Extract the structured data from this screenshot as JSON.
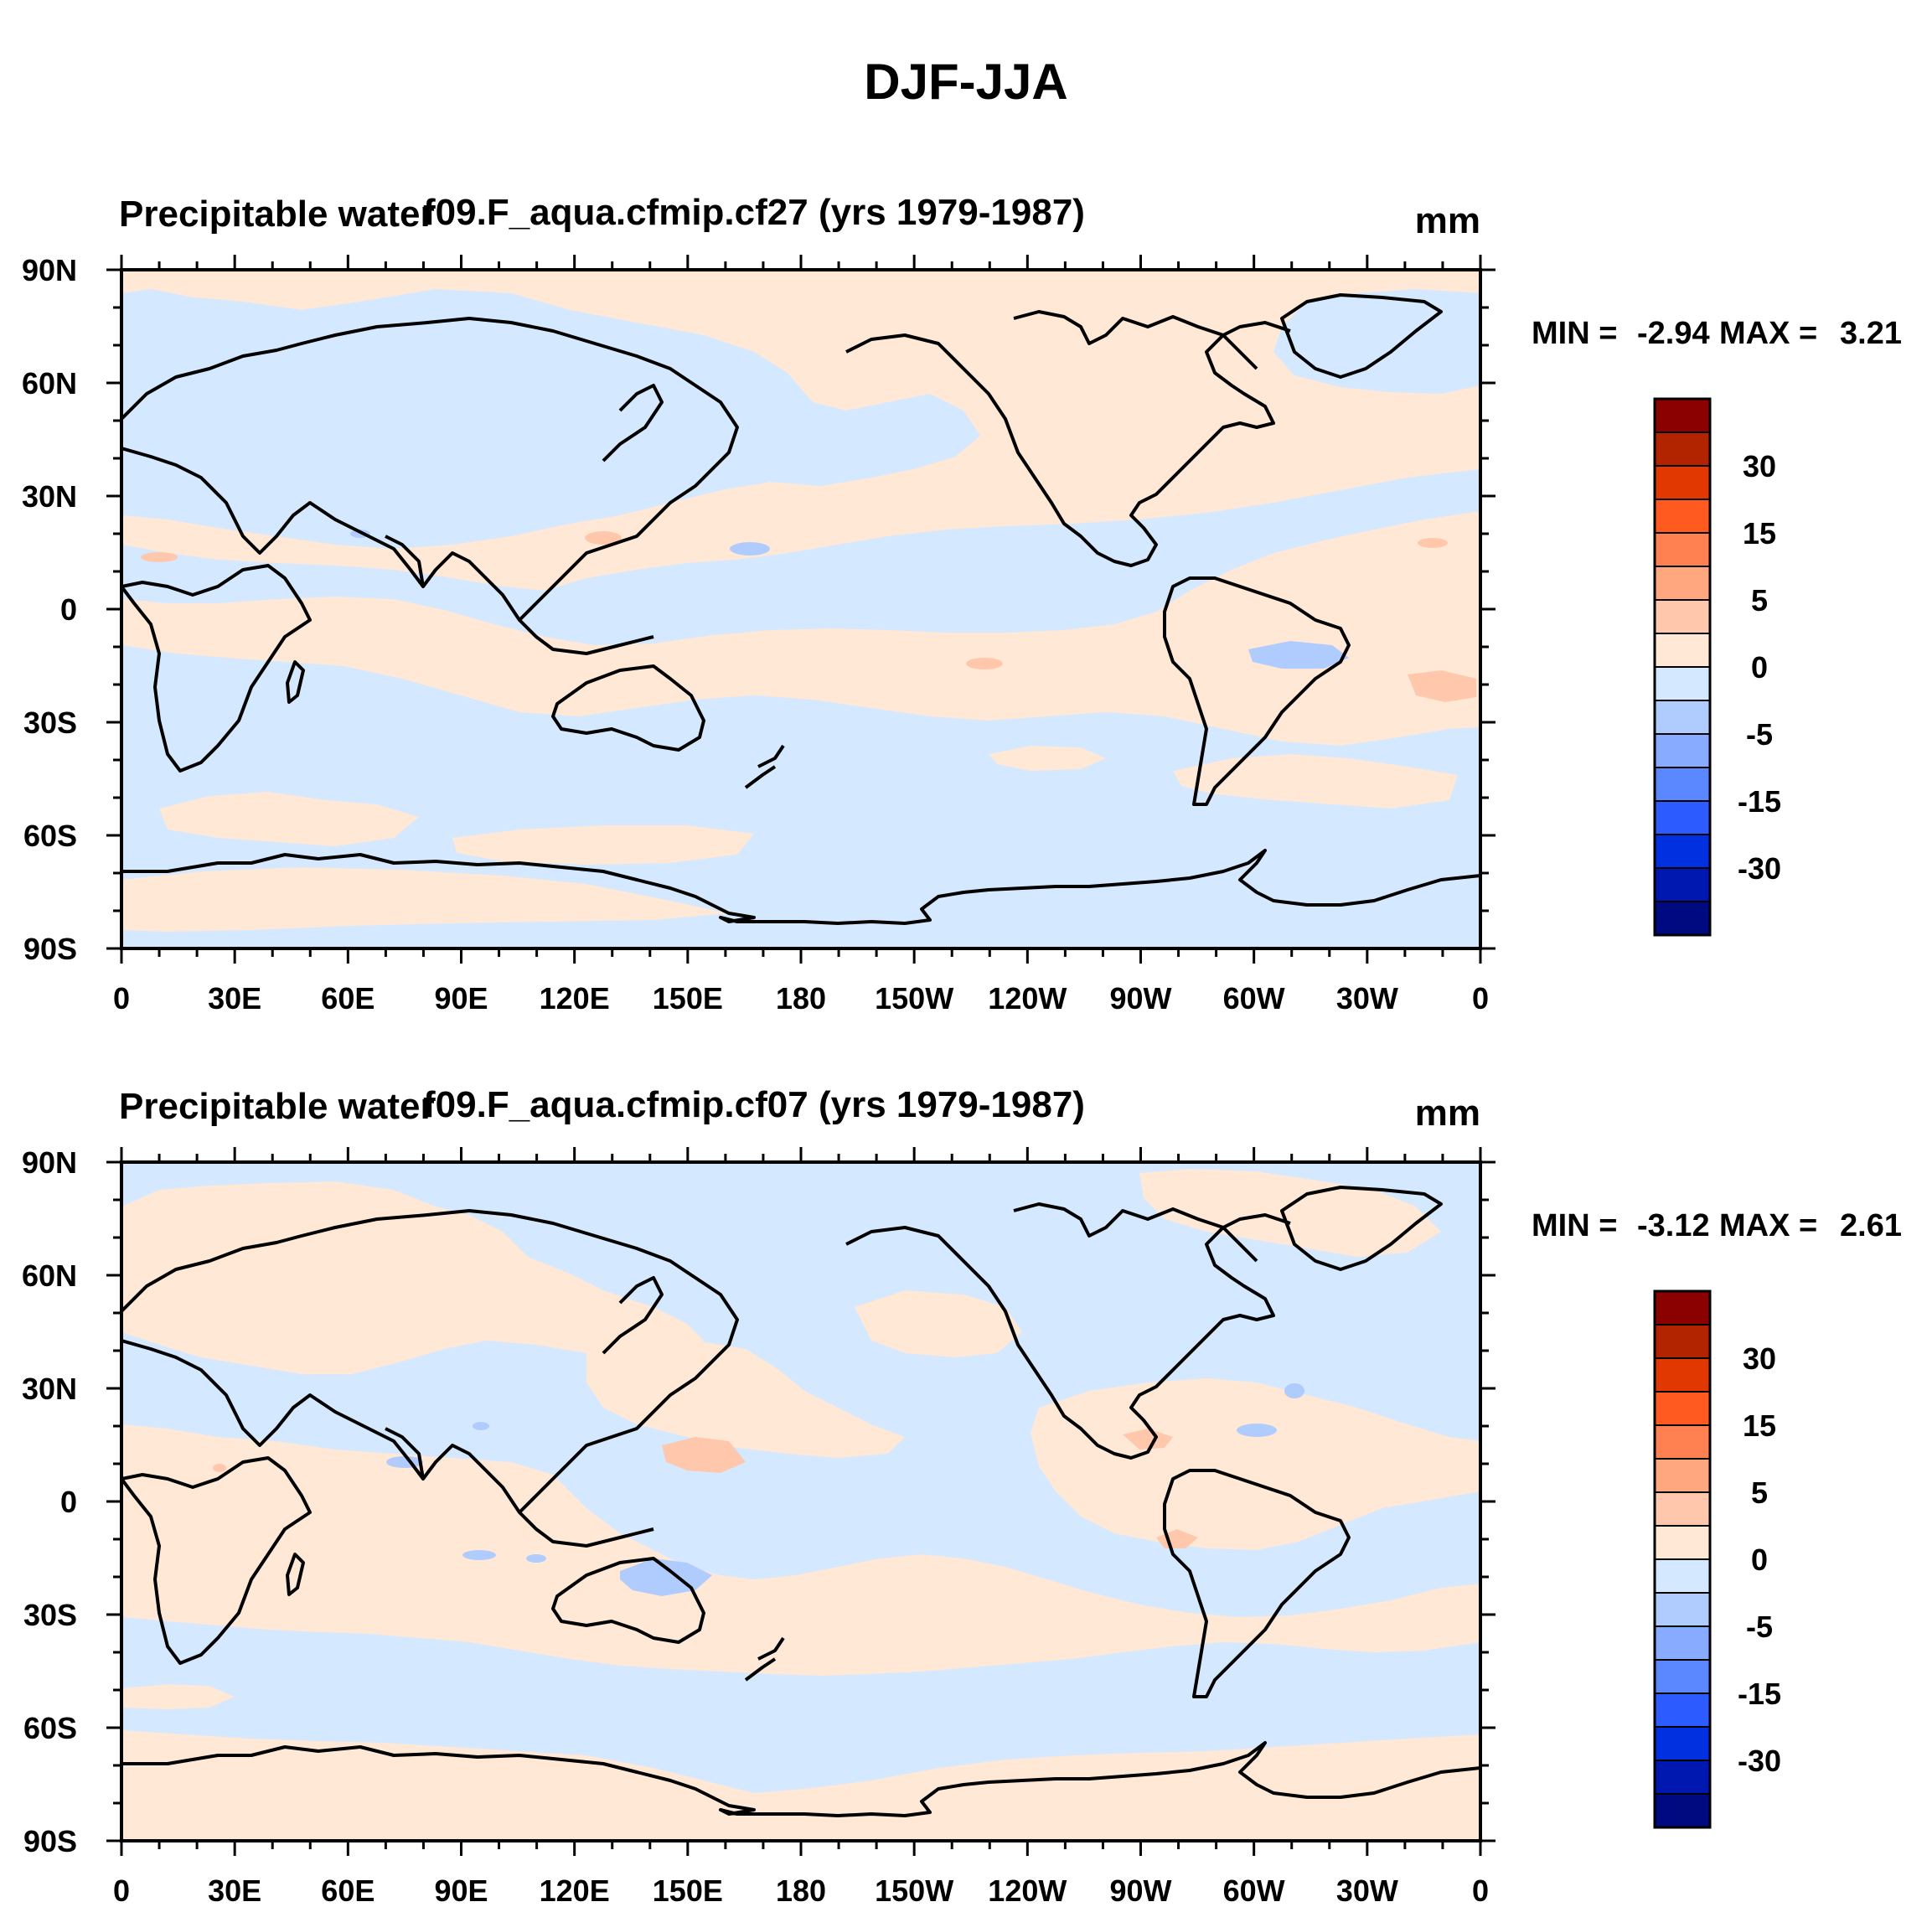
{
  "chart_data": {
    "title": "DJF-JJA",
    "colorbar_levels": [
      "30",
      "15",
      "5",
      "0",
      "-5",
      "-15",
      "-30"
    ],
    "colorbar_colors": [
      "#8b0000",
      "#b22400",
      "#e03800",
      "#ff5a20",
      "#ff8050",
      "#ffa880",
      "#ffc8ac",
      "#ffe8d6",
      "#d4e8ff",
      "#b0ccff",
      "#88aaff",
      "#5c88ff",
      "#2c5cff",
      "#0030e0",
      "#0018b0",
      "#000a80"
    ],
    "x_tick_labels": [
      "0",
      "30E",
      "60E",
      "90E",
      "120E",
      "150E",
      "180",
      "150W",
      "120W",
      "90W",
      "60W",
      "30W",
      "0"
    ],
    "y_tick_labels": [
      "90N",
      "60N",
      "30N",
      "0",
      "30S",
      "60S",
      "90S"
    ],
    "panels": [
      {
        "type": "heatmap",
        "variable": "Precipitable water",
        "case": "f09.F_aqua.cfmip.cf27 (yrs 1979-1987)",
        "units": "mm",
        "min_label": "MIN =",
        "min_value": "-2.94",
        "max_label": "MAX =",
        "max_value": "3.21",
        "xlim": [
          0,
          360
        ],
        "ylim": [
          -90,
          90
        ]
      },
      {
        "type": "heatmap",
        "variable": "Precipitable water",
        "case": "f09.F_aqua.cfmip.cf07 (yrs 1979-1987)",
        "units": "mm",
        "min_label": "MIN =",
        "min_value": "-3.12",
        "max_label": "MAX =",
        "max_value": "2.61",
        "xlim": [
          0,
          360
        ],
        "ylim": [
          -90,
          90
        ]
      }
    ]
  }
}
